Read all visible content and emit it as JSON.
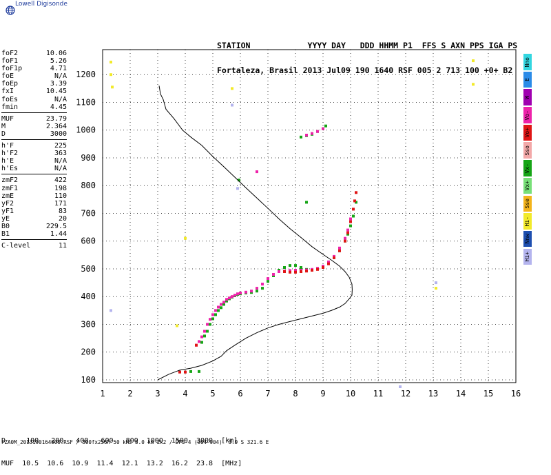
{
  "brand": {
    "name": "Lowell Digisonde",
    "icon": "globe-icon"
  },
  "header": {
    "line1": "STATION            YYYY DAY   DDD HHMM P1  FFS S AXN PPS IGA PS",
    "line2": "Fortaleza, Brasil 2013 Jul09 190 1640 RSF 005 2 713 100 +0+ B2"
  },
  "params": [
    [
      {
        "k": "foF2",
        "v": "10.06"
      },
      {
        "k": "foF1",
        "v": "5.26"
      },
      {
        "k": "foF1p",
        "v": "4.71"
      },
      {
        "k": "foE",
        "v": "N/A"
      },
      {
        "k": "foEp",
        "v": "3.39"
      },
      {
        "k": "fxI",
        "v": "10.45"
      },
      {
        "k": "foEs",
        "v": "N/A"
      },
      {
        "k": "fmin",
        "v": "4.45"
      }
    ],
    [
      {
        "k": "MUF",
        "v": "23.79"
      },
      {
        "k": "M",
        "v": "2.364"
      },
      {
        "k": "D",
        "v": "3000"
      }
    ],
    [
      {
        "k": "h'F",
        "v": "225"
      },
      {
        "k": "h'F2",
        "v": "363"
      },
      {
        "k": "h'E",
        "v": "N/A"
      },
      {
        "k": "h'Es",
        "v": "N/A"
      }
    ],
    [
      {
        "k": "zmF2",
        "v": "422"
      },
      {
        "k": "zmF1",
        "v": "198"
      },
      {
        "k": "zmE",
        "v": "110"
      },
      {
        "k": "yF2",
        "v": "171"
      },
      {
        "k": "yF1",
        "v": "83"
      },
      {
        "k": "yE",
        "v": "20"
      },
      {
        "k": "B0",
        "v": "229.5"
      },
      {
        "k": "B1",
        "v": "1.44"
      }
    ],
    [
      {
        "k": "C-level",
        "v": "11"
      }
    ]
  ],
  "legend": [
    {
      "label": "Nno",
      "color": "#33d6e0"
    },
    {
      "label": "E",
      "color": "#2a8be8"
    },
    {
      "label": "W",
      "color": "#a000b0"
    },
    {
      "label": "Vo-",
      "color": "#ee22aa"
    },
    {
      "label": "Vo+",
      "color": "#e01515"
    },
    {
      "label": "Sso",
      "color": "#f3a8a8"
    },
    {
      "label": "Vx-",
      "color": "#16a516"
    },
    {
      "label": "Vx+",
      "color": "#78e078"
    },
    {
      "label": "Sse",
      "color": "#f4b41a"
    },
    {
      "label": "Hi-",
      "color": "#f2ea2a"
    },
    {
      "label": "Nnw",
      "color": "#1e4fb0"
    },
    {
      "label": "Hi+",
      "color": "#b4b4ee"
    }
  ],
  "muf_table": {
    "row1": "D     100   200   400   600   800  1000  1500  3000  [km]",
    "row2": "MUF  10.5  10.6  10.9  11.4  12.1  13.2  16.2  23.8  [MHz]"
  },
  "footer": "FZA0M_2013190164000.RSF / 300fx256h 50 kHz 5.0 km 2x2 / DPS-4 (904-904)  3.9 S 321.6 E",
  "chart_data": {
    "type": "scatter",
    "xlim": [
      1,
      16
    ],
    "ylim": [
      100,
      1200
    ],
    "x_ticks": [
      1,
      2,
      3,
      4,
      5,
      6,
      7,
      8,
      9,
      10,
      11,
      12,
      13,
      14,
      15,
      16
    ],
    "y_ticks": [
      100,
      200,
      300,
      400,
      500,
      600,
      700,
      800,
      900,
      1000,
      1100,
      1200
    ],
    "grid": "dotted",
    "series": [
      {
        "kind": "echo",
        "color": "#16a516",
        "x": [
          4.2,
          4.5,
          4.6,
          4.7,
          4.8,
          4.9,
          5.0,
          5.1,
          5.2,
          5.3,
          5.4,
          5.5,
          5.6,
          5.7,
          5.8,
          5.9,
          6.0,
          6.2,
          6.4,
          6.6,
          6.8,
          7.0,
          7.2,
          7.4,
          7.6,
          7.8,
          8.0,
          8.2,
          8.4,
          8.6,
          8.8,
          9.0,
          9.2,
          9.4,
          9.6,
          9.8,
          9.9,
          10.0,
          10.1,
          10.2,
          8.2,
          8.4,
          8.6,
          8.8,
          9.0,
          9.1,
          5.95,
          8.4
        ],
        "y": [
          130,
          130,
          235,
          258,
          275,
          300,
          320,
          335,
          350,
          360,
          372,
          384,
          392,
          398,
          403,
          408,
          410,
          413,
          415,
          420,
          430,
          455,
          475,
          495,
          505,
          512,
          512,
          505,
          498,
          495,
          500,
          510,
          522,
          540,
          565,
          600,
          625,
          655,
          690,
          740,
          975,
          980,
          985,
          995,
          1005,
          1015,
          820,
          740
        ]
      },
      {
        "kind": "echo",
        "color": "#ee22aa",
        "x": [
          4.4,
          4.5,
          4.6,
          4.7,
          4.8,
          4.9,
          5.0,
          5.1,
          5.2,
          5.3,
          5.4,
          5.5,
          5.6,
          5.7,
          5.8,
          5.9,
          6.0,
          6.2,
          6.4,
          6.6,
          6.8,
          7.0,
          7.2,
          7.4,
          7.6,
          7.8,
          8.0,
          8.2,
          8.4,
          8.6,
          8.8,
          9.0,
          9.2,
          9.4,
          9.6,
          9.8,
          9.9,
          10.0,
          8.4,
          8.6,
          8.8,
          9.0,
          6.6
        ],
        "y": [
          225,
          238,
          255,
          275,
          300,
          318,
          335,
          350,
          362,
          372,
          380,
          390,
          395,
          400,
          405,
          410,
          413,
          416,
          420,
          430,
          445,
          465,
          480,
          490,
          492,
          494,
          495,
          495,
          496,
          498,
          502,
          510,
          525,
          545,
          575,
          610,
          640,
          680,
          982,
          988,
          995,
          1005,
          850
        ]
      },
      {
        "kind": "echo",
        "color": "#e01515",
        "x": [
          3.8,
          4.0,
          7.6,
          7.8,
          8.0,
          8.2,
          8.4,
          8.6,
          8.8,
          9.0,
          9.2,
          9.4,
          9.6,
          9.8,
          9.9,
          10.0,
          10.1,
          10.15,
          10.2,
          4.4
        ],
        "y": [
          128,
          128,
          490,
          488,
          488,
          490,
          492,
          495,
          498,
          505,
          518,
          540,
          565,
          600,
          630,
          670,
          715,
          745,
          775,
          225
        ]
      },
      {
        "kind": "echo",
        "color": "#f2ea2a",
        "x": [
          1.3,
          1.3,
          1.35,
          14.45,
          14.45,
          4.0,
          3.7,
          13.1,
          5.7
        ],
        "y": [
          1245,
          1200,
          1155,
          1250,
          1165,
          610,
          295,
          430,
          1150
        ]
      },
      {
        "kind": "echo",
        "color": "#b4b4ee",
        "x": [
          1.3,
          13.1,
          11.8,
          5.7,
          5.9
        ],
        "y": [
          350,
          450,
          75,
          1090,
          790
        ]
      },
      {
        "kind": "profile",
        "color": "#000000",
        "x": [
          3.0,
          3.4,
          3.8,
          4.2,
          4.6,
          5.0,
          5.3,
          5.5,
          5.8,
          6.2,
          6.6,
          7.0,
          7.4,
          7.8,
          8.2,
          8.6,
          9.0,
          9.3,
          9.6,
          9.8,
          9.95,
          10.05,
          10.06,
          10.05,
          9.95,
          9.8,
          9.6,
          9.3,
          9.0,
          8.6,
          8.2,
          7.8,
          7.4,
          7.0,
          6.6,
          6.2,
          5.8,
          5.4,
          5.0,
          4.6,
          4.2,
          3.9,
          3.6,
          3.3,
          3.2,
          3.1,
          3.05
        ],
        "y": [
          100,
          120,
          135,
          142,
          152,
          168,
          185,
          205,
          225,
          250,
          270,
          287,
          300,
          310,
          320,
          330,
          340,
          350,
          362,
          375,
          392,
          405,
          425,
          445,
          470,
          490,
          510,
          532,
          552,
          580,
          613,
          645,
          680,
          718,
          755,
          792,
          830,
          868,
          905,
          945,
          975,
          1000,
          1040,
          1075,
          1110,
          1130,
          1160
        ]
      }
    ]
  }
}
